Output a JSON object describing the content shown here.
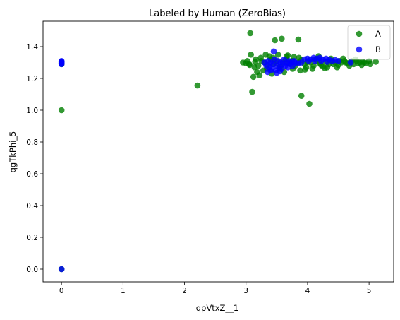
{
  "chart_data": {
    "type": "scatter",
    "title": "Labeled by Human (ZeroBias)",
    "xlabel": "qpVtxZ__1",
    "ylabel": "qgTkPhi_5",
    "xlim": [
      -0.3,
      5.4
    ],
    "ylim": [
      -0.08,
      1.56
    ],
    "xticks": [
      0,
      1,
      2,
      3,
      4,
      5
    ],
    "yticks": [
      0.0,
      0.2,
      0.4,
      0.6,
      0.8,
      1.0,
      1.2,
      1.4
    ],
    "grid": false,
    "legend_position": "top-right",
    "series": [
      {
        "name": "A",
        "color": "#008000",
        "marker_opacity": 0.8,
        "points": [
          [
            0,
            1.3
          ],
          [
            0,
            1.295
          ],
          [
            0,
            1.29
          ],
          [
            0,
            1.305
          ],
          [
            0,
            1.0
          ],
          [
            0,
            0.0
          ],
          [
            2.21,
            1.155
          ],
          [
            3.07,
            1.485
          ],
          [
            3.58,
            1.45
          ],
          [
            3.85,
            1.445
          ],
          [
            3.47,
            1.44
          ],
          [
            3.08,
            1.35
          ],
          [
            3.1,
            1.115
          ],
          [
            3.9,
            1.09
          ],
          [
            4.03,
            1.04
          ],
          [
            3.12,
            1.21
          ],
          [
            2.95,
            1.3
          ],
          [
            3.0,
            1.295
          ],
          [
            3.05,
            1.29
          ],
          [
            3.15,
            1.305
          ],
          [
            3.2,
            1.28
          ],
          [
            3.25,
            1.31
          ],
          [
            3.3,
            1.3
          ],
          [
            3.35,
            1.285
          ],
          [
            3.4,
            1.32
          ],
          [
            3.45,
            1.29
          ],
          [
            3.5,
            1.31
          ],
          [
            3.55,
            1.275
          ],
          [
            3.6,
            1.3
          ],
          [
            3.65,
            1.32
          ],
          [
            3.7,
            1.295
          ],
          [
            3.75,
            1.31
          ],
          [
            3.8,
            1.28
          ],
          [
            3.85,
            1.3
          ],
          [
            3.9,
            1.315
          ],
          [
            3.95,
            1.29
          ],
          [
            4.0,
            1.305
          ],
          [
            4.05,
            1.3
          ],
          [
            4.1,
            1.28
          ],
          [
            4.15,
            1.31
          ],
          [
            4.2,
            1.295
          ],
          [
            4.25,
            1.275
          ],
          [
            4.3,
            1.305
          ],
          [
            4.35,
            1.29
          ],
          [
            4.4,
            1.31
          ],
          [
            4.45,
            1.3
          ],
          [
            4.5,
            1.285
          ],
          [
            4.55,
            1.3
          ],
          [
            4.6,
            1.31
          ],
          [
            4.65,
            1.295
          ],
          [
            4.7,
            1.305
          ],
          [
            4.75,
            1.29
          ],
          [
            4.8,
            1.31
          ],
          [
            4.85,
            1.3
          ],
          [
            4.9,
            1.305
          ],
          [
            4.95,
            1.295
          ],
          [
            5.0,
            1.31
          ],
          [
            5.11,
            1.305
          ],
          [
            3.18,
            1.24
          ],
          [
            3.22,
            1.22
          ],
          [
            3.28,
            1.25
          ],
          [
            3.32,
            1.35
          ],
          [
            3.38,
            1.34
          ],
          [
            3.42,
            1.23
          ],
          [
            3.52,
            1.35
          ],
          [
            3.62,
            1.24
          ],
          [
            3.68,
            1.345
          ],
          [
            3.78,
            1.335
          ],
          [
            3.88,
            1.25
          ],
          [
            3.98,
            1.27
          ],
          [
            4.08,
            1.26
          ],
          [
            4.18,
            1.34
          ],
          [
            4.28,
            1.265
          ],
          [
            4.38,
            1.325
          ],
          [
            4.48,
            1.27
          ],
          [
            4.58,
            1.325
          ],
          [
            4.68,
            1.28
          ],
          [
            4.78,
            1.32
          ],
          [
            4.88,
            1.285
          ],
          [
            3.02,
            1.31
          ],
          [
            3.14,
            1.27
          ],
          [
            3.24,
            1.33
          ],
          [
            3.34,
            1.26
          ],
          [
            3.44,
            1.33
          ],
          [
            3.56,
            1.26
          ],
          [
            3.66,
            1.34
          ],
          [
            3.76,
            1.26
          ],
          [
            3.86,
            1.33
          ],
          [
            3.96,
            1.255
          ],
          [
            4.12,
            1.32
          ],
          [
            4.22,
            1.285
          ],
          [
            4.32,
            1.27
          ],
          [
            4.42,
            1.29
          ],
          [
            4.52,
            1.31
          ],
          [
            4.62,
            1.3
          ],
          [
            4.72,
            1.31
          ],
          [
            4.82,
            1.295
          ],
          [
            4.92,
            1.3
          ],
          [
            5.02,
            1.29
          ],
          [
            3.06,
            1.285
          ],
          [
            3.16,
            1.32
          ]
        ]
      },
      {
        "name": "B",
        "color": "#0000ff",
        "marker_opacity": 0.8,
        "points": [
          [
            0,
            1.31
          ],
          [
            0,
            1.3
          ],
          [
            0,
            1.295
          ],
          [
            0,
            1.29
          ],
          [
            0,
            1.305
          ],
          [
            0,
            0.0
          ],
          [
            3.3,
            1.3
          ],
          [
            3.33,
            1.28
          ],
          [
            3.36,
            1.31
          ],
          [
            3.38,
            1.27
          ],
          [
            3.4,
            1.3
          ],
          [
            3.42,
            1.26
          ],
          [
            3.44,
            1.29
          ],
          [
            3.46,
            1.32
          ],
          [
            3.48,
            1.25
          ],
          [
            3.5,
            1.28
          ],
          [
            3.52,
            1.31
          ],
          [
            3.54,
            1.27
          ],
          [
            3.56,
            1.3
          ],
          [
            3.58,
            1.26
          ],
          [
            3.6,
            1.29
          ],
          [
            3.62,
            1.32
          ],
          [
            3.64,
            1.28
          ],
          [
            3.66,
            1.3
          ],
          [
            3.68,
            1.27
          ],
          [
            3.7,
            1.31
          ],
          [
            3.72,
            1.29
          ],
          [
            3.74,
            1.3
          ],
          [
            3.76,
            1.28
          ],
          [
            3.78,
            1.31
          ],
          [
            3.8,
            1.3
          ],
          [
            3.45,
            1.37
          ],
          [
            3.5,
            1.235
          ],
          [
            3.4,
            1.25
          ],
          [
            3.55,
            1.245
          ],
          [
            3.35,
            1.24
          ],
          [
            3.95,
            1.32
          ],
          [
            4.0,
            1.325
          ],
          [
            4.05,
            1.32
          ],
          [
            4.1,
            1.33
          ],
          [
            4.15,
            1.325
          ],
          [
            4.2,
            1.33
          ],
          [
            4.25,
            1.32
          ],
          [
            4.3,
            1.325
          ],
          [
            4.35,
            1.32
          ],
          [
            4.4,
            1.31
          ],
          [
            4.45,
            1.315
          ],
          [
            4.5,
            1.31
          ],
          [
            4.02,
            1.31
          ],
          [
            4.12,
            1.31
          ],
          [
            4.22,
            1.31
          ],
          [
            4.32,
            1.305
          ],
          [
            4.7,
            1.3
          ],
          [
            3.9,
            1.3
          ],
          [
            3.85,
            1.295
          ]
        ]
      }
    ]
  }
}
